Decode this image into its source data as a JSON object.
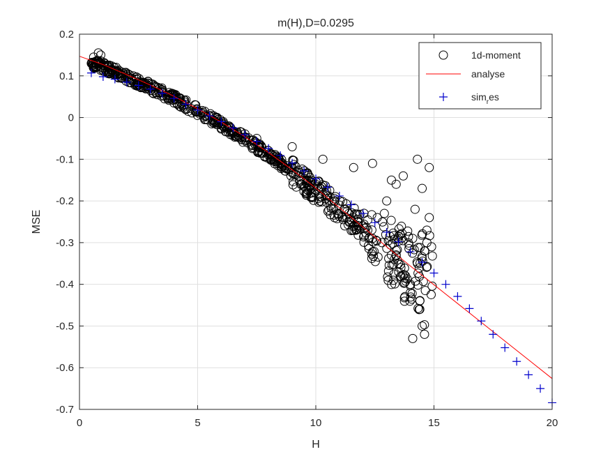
{
  "chart_data": {
    "type": "scatter",
    "title": "m(H),D=0.0295",
    "xlabel": "H",
    "ylabel": "MSE",
    "xlim": [
      0,
      20
    ],
    "ylim": [
      -0.7,
      0.2
    ],
    "xticks": [
      0,
      5,
      10,
      15,
      20
    ],
    "xtick_labels": [
      "0",
      "5",
      "10",
      "15",
      "20"
    ],
    "yticks": [
      0.2,
      0.1,
      0,
      -0.1,
      -0.2,
      -0.3,
      -0.4,
      -0.5,
      -0.6,
      -0.7
    ],
    "ytick_labels": [
      "0.2",
      "0.1",
      "0",
      "-0.1",
      "-0.2",
      "-0.3",
      "-0.4",
      "-0.5",
      "-0.6",
      "-0.7"
    ],
    "grid": true,
    "legend_position": "top-right",
    "legend": [
      "1d-moment",
      "analyse",
      "sim",
      "r",
      "es"
    ],
    "series": [
      {
        "name": "1d-moment",
        "marker": "circle-open",
        "color": "#000000",
        "x": [
          0.5,
          0.6,
          0.7,
          0.8,
          0.9,
          1.0,
          1.2,
          1.4,
          1.6,
          1.8,
          2.0,
          2.2,
          2.5,
          2.8,
          3.0,
          3.3,
          3.6,
          4.0,
          4.3,
          4.6,
          5.0,
          5.3,
          5.6,
          6.0,
          6.3,
          6.6,
          7.0,
          7.3,
          7.6,
          8.0,
          8.3,
          8.6,
          9.0,
          9.3,
          9.6,
          10.0,
          10.2,
          10.4,
          10.6,
          10.8,
          11.0,
          11.2,
          11.4,
          11.6,
          11.8,
          12.0,
          12.2,
          12.4,
          12.6,
          12.8,
          13.0,
          13.2,
          13.4,
          13.6,
          13.8,
          14.0,
          14.1,
          14.2,
          14.3,
          14.4,
          14.5,
          14.6,
          14.7,
          14.8,
          14.9,
          0.8,
          1.5,
          3.5,
          7.5,
          9.0,
          10.3,
          11.6,
          12.4,
          13.2,
          13.7,
          14.1,
          14.5,
          14.6,
          14.3,
          14.0,
          13.5,
          12.9,
          14.8,
          14.4,
          14.7
        ],
        "y": [
          0.13,
          0.145,
          0.12,
          0.135,
          0.15,
          0.125,
          0.12,
          0.115,
          0.11,
          0.1,
          0.095,
          0.09,
          0.08,
          0.07,
          0.065,
          0.055,
          0.045,
          0.035,
          0.025,
          0.015,
          0.005,
          -0.005,
          -0.015,
          -0.025,
          -0.035,
          -0.045,
          -0.055,
          -0.065,
          -0.08,
          -0.09,
          -0.1,
          -0.11,
          -0.12,
          -0.14,
          -0.15,
          -0.16,
          -0.17,
          -0.18,
          -0.19,
          -0.2,
          -0.21,
          -0.22,
          -0.23,
          -0.24,
          -0.25,
          -0.26,
          -0.27,
          -0.29,
          -0.24,
          -0.3,
          -0.2,
          -0.33,
          -0.16,
          -0.36,
          -0.38,
          -0.42,
          -0.29,
          -0.22,
          -0.35,
          -0.46,
          -0.17,
          -0.32,
          -0.27,
          -0.24,
          -0.31,
          0.155,
          0.11,
          0.06,
          -0.05,
          -0.07,
          -0.1,
          -0.12,
          -0.11,
          -0.15,
          -0.14,
          -0.53,
          -0.5,
          -0.52,
          -0.1,
          -0.4,
          -0.35,
          -0.23,
          -0.12,
          -0.44,
          -0.3
        ],
        "note": ""
      },
      {
        "name": "analyse",
        "marker": "line",
        "color": "#ff0000",
        "x": [
          0,
          1,
          2,
          3,
          4,
          5,
          6,
          7,
          8,
          9,
          10,
          11,
          12,
          13,
          14,
          15,
          16,
          17,
          18,
          19,
          20
        ],
        "y": [
          0.147,
          0.127,
          0.103,
          0.078,
          0.051,
          0.021,
          -0.011,
          -0.046,
          -0.084,
          -0.125,
          -0.169,
          -0.216,
          -0.263,
          -0.31,
          -0.356,
          -0.401,
          -0.446,
          -0.491,
          -0.536,
          -0.581,
          -0.626
        ]
      },
      {
        "name": "sim_r_es",
        "marker": "plus",
        "color": "#0000cc",
        "x": [
          0.5,
          1,
          1.5,
          2,
          2.5,
          3,
          3.5,
          4,
          4.5,
          5,
          5.5,
          6,
          6.5,
          7,
          7.5,
          8,
          8.5,
          9,
          9.5,
          10,
          10.5,
          11,
          11.5,
          12,
          12.5,
          13,
          13.5,
          14,
          14.5,
          15,
          15.5,
          16,
          16.5,
          17,
          17.5,
          18,
          18.5,
          19,
          19.5,
          20
        ],
        "y": [
          0.107,
          0.098,
          0.092,
          0.085,
          0.077,
          0.068,
          0.058,
          0.046,
          0.032,
          0.018,
          0.004,
          -0.01,
          -0.025,
          -0.041,
          -0.057,
          -0.074,
          -0.091,
          -0.109,
          -0.128,
          -0.147,
          -0.167,
          -0.188,
          -0.209,
          -0.23,
          -0.252,
          -0.275,
          -0.298,
          -0.322,
          -0.347,
          -0.373,
          -0.4,
          -0.429,
          -0.458,
          -0.488,
          -0.52,
          -0.552,
          -0.585,
          -0.617,
          -0.65,
          -0.684
        ]
      }
    ]
  }
}
